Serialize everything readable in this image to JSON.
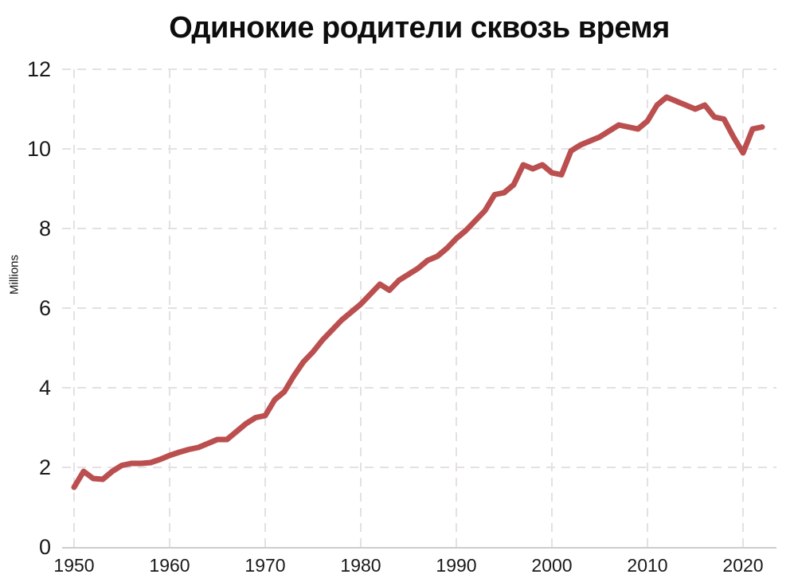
{
  "title": "Одинокие родители сквозь время",
  "y_axis_label": "Millions",
  "colors": {
    "line": "#bb4f4f",
    "grid": "#e4e0e4",
    "axis": "#cfcbd0",
    "text": "#1a1a1a",
    "background": "#ffffff"
  },
  "chart_data": {
    "type": "line",
    "title": "Одинокие родители сквозь время",
    "xlabel": "",
    "ylabel": "Millions",
    "grid": "dashed",
    "legend": "none",
    "ylim": [
      0,
      12
    ],
    "xlim": [
      1948.8,
      2023.5
    ],
    "y_ticks": [
      0,
      2,
      4,
      6,
      8,
      10,
      12
    ],
    "x_ticks": [
      1950,
      1960,
      1970,
      1980,
      1990,
      2000,
      2010,
      2020
    ],
    "x": [
      1950,
      1951,
      1952,
      1953,
      1954,
      1955,
      1956,
      1957,
      1958,
      1959,
      1960,
      1961,
      1962,
      1963,
      1964,
      1965,
      1966,
      1967,
      1968,
      1969,
      1970,
      1971,
      1972,
      1973,
      1974,
      1975,
      1976,
      1977,
      1978,
      1979,
      1980,
      1981,
      1982,
      1983,
      1984,
      1985,
      1986,
      1987,
      1988,
      1989,
      1990,
      1991,
      1992,
      1993,
      1994,
      1995,
      1996,
      1997,
      1998,
      1999,
      2000,
      2001,
      2002,
      2003,
      2004,
      2005,
      2006,
      2007,
      2008,
      2009,
      2010,
      2011,
      2012,
      2013,
      2014,
      2015,
      2016,
      2017,
      2018,
      2019,
      2020,
      2021,
      2022
    ],
    "values": [
      1.5,
      1.9,
      1.72,
      1.7,
      1.9,
      2.05,
      2.1,
      2.1,
      2.12,
      2.2,
      2.3,
      2.38,
      2.45,
      2.5,
      2.6,
      2.7,
      2.7,
      2.9,
      3.1,
      3.25,
      3.3,
      3.7,
      3.9,
      4.3,
      4.65,
      4.9,
      5.2,
      5.45,
      5.7,
      5.9,
      6.1,
      6.35,
      6.6,
      6.45,
      6.7,
      6.85,
      7.0,
      7.2,
      7.3,
      7.5,
      7.75,
      7.95,
      8.2,
      8.45,
      8.85,
      8.9,
      9.1,
      9.6,
      9.5,
      9.6,
      9.4,
      9.35,
      9.95,
      10.1,
      10.2,
      10.3,
      10.45,
      10.6,
      10.55,
      10.5,
      10.7,
      11.1,
      11.3,
      11.2,
      11.1,
      11.0,
      11.1,
      10.8,
      10.75,
      10.3,
      9.9,
      10.5,
      10.55
    ]
  }
}
